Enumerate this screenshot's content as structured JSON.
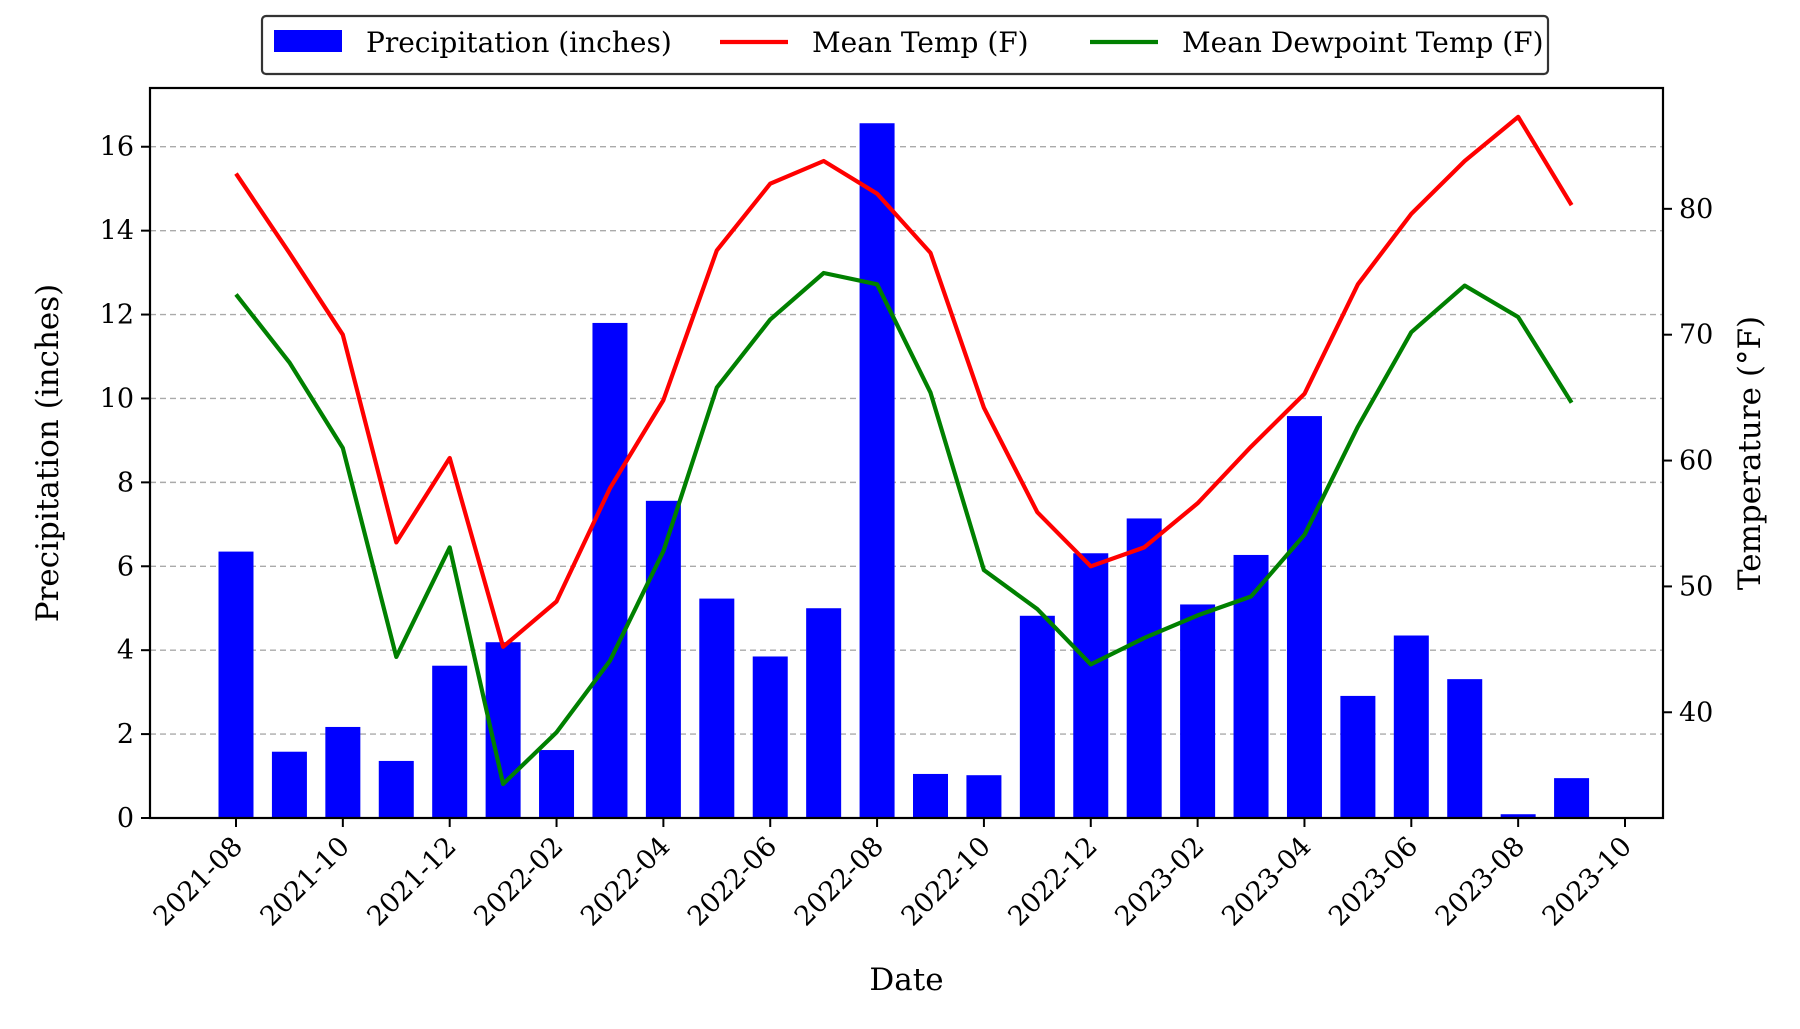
{
  "chart_data": {
    "type": "bar",
    "xlabel": "Date",
    "ylabel": "Precipitation (inches)",
    "y2label": "Temperature (°F)",
    "ylim": [
      0,
      17.4
    ],
    "y2lim": [
      31.6,
      89.6
    ],
    "grid": "horizontal dashed",
    "legend_position": "top-center",
    "x_ticks": [
      "2021-08",
      "2021-10",
      "2021-12",
      "2022-02",
      "2022-04",
      "2022-06",
      "2022-08",
      "2022-10",
      "2022-12",
      "2023-02",
      "2023-04",
      "2023-06",
      "2023-08",
      "2023-10"
    ],
    "y_ticks": [
      0,
      2,
      4,
      6,
      8,
      10,
      12,
      14,
      16
    ],
    "y2_ticks": [
      40,
      50,
      60,
      70,
      80
    ],
    "categories": [
      "2021-08",
      "2021-09",
      "2021-10",
      "2021-11",
      "2021-12",
      "2022-01",
      "2022-02",
      "2022-03",
      "2022-04",
      "2022-05",
      "2022-06",
      "2022-07",
      "2022-08",
      "2022-09",
      "2022-10",
      "2022-11",
      "2022-12",
      "2023-01",
      "2023-02",
      "2023-03",
      "2023-04",
      "2023-05",
      "2023-06",
      "2023-07",
      "2023-08",
      "2023-09"
    ],
    "series": [
      {
        "name": "Precipitation (inches)",
        "kind": "bar",
        "axis": "left",
        "color": "#0000ff",
        "values": [
          6.35,
          1.58,
          2.17,
          1.36,
          3.63,
          4.19,
          1.62,
          11.8,
          7.56,
          5.23,
          3.85,
          5.0,
          16.56,
          1.05,
          1.02,
          4.82,
          6.31,
          7.14,
          5.09,
          6.27,
          9.58,
          2.91,
          4.35,
          3.31,
          0.09,
          0.95
        ]
      },
      {
        "name": "Mean Temp (F)",
        "kind": "line",
        "axis": "right",
        "color": "#ff0000",
        "values": [
          82.8,
          76.5,
          70.0,
          53.5,
          60.2,
          45.2,
          48.8,
          57.8,
          64.8,
          76.7,
          82.0,
          83.8,
          81.2,
          76.5,
          64.2,
          55.9,
          51.6,
          53.1,
          56.6,
          61.1,
          65.3,
          74.0,
          79.6,
          83.8,
          87.3,
          80.3
        ]
      },
      {
        "name": "Mean Dewpoint Temp (F)",
        "kind": "line",
        "axis": "right",
        "color": "#008000",
        "values": [
          73.2,
          67.8,
          61.0,
          44.4,
          53.1,
          34.3,
          38.4,
          44.1,
          52.8,
          65.8,
          71.2,
          74.9,
          74.0,
          65.4,
          51.3,
          48.2,
          43.8,
          45.9,
          47.7,
          49.2,
          54.1,
          62.7,
          70.2,
          73.9,
          71.4,
          64.6
        ]
      }
    ]
  }
}
